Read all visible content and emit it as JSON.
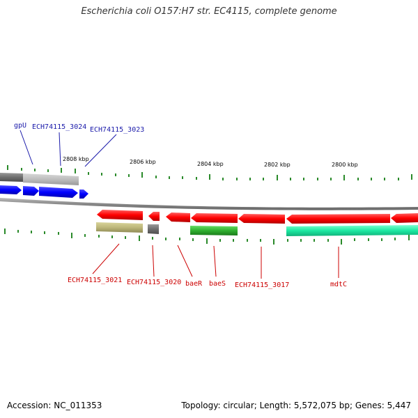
{
  "title": "Escherichia coli O157:H7 str. EC4115, complete genome",
  "footer": {
    "accession": "Accession: NC_011353",
    "topology": "Topology: circular; Length: 5,572,075 bp; Genes: 5,447"
  },
  "ruler": {
    "ticks": [
      "2808 kbp",
      "2806 kbp",
      "2804 kbp",
      "2802 kbp",
      "2800 kbp"
    ]
  },
  "colors": {
    "forward_cds": "#1a1aff",
    "reverse_cds": "#ff1a1a",
    "grey_feature": "#777777",
    "light_grey_feature": "#bbbbbb",
    "olive_feature": "#b8b478",
    "green_feature": "#2aaa2a",
    "teal_feature": "#1ae6a0",
    "backbone": "#888888",
    "tick_green": "#2a8a2a",
    "label_blue": "#1a1aaa",
    "label_red": "#cc0000"
  },
  "labels_top": [
    "gpU",
    "ECH74115_3024",
    "ECH74115_3023"
  ],
  "labels_bottom": [
    "ECH74115_3021",
    "ECH74115_3020",
    "baeR",
    "baeS",
    "ECH74115_3017",
    "mdtC"
  ]
}
